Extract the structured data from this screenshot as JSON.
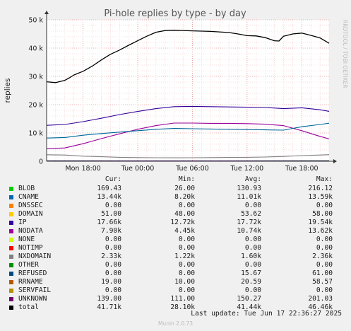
{
  "chart_data": {
    "type": "line",
    "title": "Pi-hole replies by type - by day",
    "ylabel": "replies",
    "side_label": "RRDTOOL / TOBI OETIKER",
    "ylim": [
      0,
      50000
    ],
    "y_ticks": [
      {
        "value": 0,
        "label": "0"
      },
      {
        "value": 10000,
        "label": "10 k"
      },
      {
        "value": 20000,
        "label": "20 k"
      },
      {
        "value": 30000,
        "label": "30 k"
      },
      {
        "value": 40000,
        "label": "40 k"
      },
      {
        "value": 50000,
        "label": "50 k"
      }
    ],
    "x_range_hours": [
      0,
      30
    ],
    "x_ticks": [
      {
        "value": 4,
        "label": "Mon 18:00"
      },
      {
        "value": 10,
        "label": "Tue 00:00"
      },
      {
        "value": 16,
        "label": "Tue 06:00"
      },
      {
        "value": 22,
        "label": "Tue 12:00"
      },
      {
        "value": 28,
        "label": "Tue 18:00"
      }
    ],
    "series": [
      {
        "name": "total",
        "color": "#000000",
        "points": [
          [
            0,
            28100
          ],
          [
            1,
            27800
          ],
          [
            2,
            28600
          ],
          [
            2.5,
            29500
          ],
          [
            3,
            30500
          ],
          [
            4,
            31800
          ],
          [
            5,
            33600
          ],
          [
            6,
            35800
          ],
          [
            7,
            37800
          ],
          [
            8,
            39300
          ],
          [
            9,
            41000
          ],
          [
            10,
            42600
          ],
          [
            11,
            44200
          ],
          [
            12,
            45600
          ],
          [
            13,
            46200
          ],
          [
            14,
            46300
          ],
          [
            16,
            46100
          ],
          [
            18,
            45900
          ],
          [
            20,
            45500
          ],
          [
            21,
            45000
          ],
          [
            22,
            44400
          ],
          [
            23,
            44300
          ],
          [
            24,
            43700
          ],
          [
            25,
            42600
          ],
          [
            25.5,
            42500
          ],
          [
            26,
            44200
          ],
          [
            27,
            45000
          ],
          [
            28,
            45300
          ],
          [
            29,
            44500
          ],
          [
            30,
            43600
          ],
          [
            31,
            41700
          ]
        ]
      },
      {
        "name": "IP",
        "color": "#330099",
        "points": [
          [
            0,
            12700
          ],
          [
            2,
            13000
          ],
          [
            4,
            14000
          ],
          [
            6,
            15200
          ],
          [
            8,
            16500
          ],
          [
            10,
            17600
          ],
          [
            12,
            18600
          ],
          [
            14,
            19300
          ],
          [
            16,
            19400
          ],
          [
            18,
            19300
          ],
          [
            20,
            19200
          ],
          [
            22,
            19100
          ],
          [
            24,
            19000
          ],
          [
            26,
            18600
          ],
          [
            28,
            18900
          ],
          [
            30,
            18200
          ],
          [
            31,
            17660
          ]
        ]
      },
      {
        "name": "CNAME",
        "color": "#006699",
        "points": [
          [
            0,
            8200
          ],
          [
            2,
            8400
          ],
          [
            4,
            9200
          ],
          [
            6,
            9800
          ],
          [
            8,
            10300
          ],
          [
            10,
            10800
          ],
          [
            12,
            11300
          ],
          [
            14,
            11600
          ],
          [
            16,
            11500
          ],
          [
            18,
            11400
          ],
          [
            20,
            11300
          ],
          [
            22,
            11200
          ],
          [
            24,
            11100
          ],
          [
            26,
            11000
          ],
          [
            28,
            12200
          ],
          [
            30,
            13000
          ],
          [
            31,
            13440
          ]
        ]
      },
      {
        "name": "NODATA",
        "color": "#990099",
        "points": [
          [
            0,
            4450
          ],
          [
            2,
            4700
          ],
          [
            4,
            6200
          ],
          [
            6,
            8000
          ],
          [
            8,
            9700
          ],
          [
            10,
            11300
          ],
          [
            12,
            12600
          ],
          [
            14,
            13500
          ],
          [
            16,
            13500
          ],
          [
            18,
            13400
          ],
          [
            20,
            13400
          ],
          [
            22,
            13300
          ],
          [
            24,
            13100
          ],
          [
            26,
            12600
          ],
          [
            28,
            10800
          ],
          [
            30,
            8800
          ],
          [
            31,
            7900
          ]
        ]
      },
      {
        "name": "NXDOMAIN",
        "color": "#808080",
        "points": [
          [
            0,
            2300
          ],
          [
            2,
            2200
          ],
          [
            4,
            1800
          ],
          [
            6,
            1600
          ],
          [
            8,
            1400
          ],
          [
            10,
            1300
          ],
          [
            12,
            1250
          ],
          [
            14,
            1220
          ],
          [
            16,
            1250
          ],
          [
            18,
            1300
          ],
          [
            20,
            1350
          ],
          [
            22,
            1400
          ],
          [
            24,
            1500
          ],
          [
            26,
            1700
          ],
          [
            28,
            2000
          ],
          [
            30,
            2200
          ],
          [
            31,
            2330
          ]
        ]
      },
      {
        "name": "UNKNOWN",
        "color": "#330066",
        "points": [
          [
            0,
            150
          ],
          [
            10,
            140
          ],
          [
            20,
            155
          ],
          [
            31,
            139
          ]
        ]
      },
      {
        "name": "BLOB",
        "color": "#00cc00",
        "points": [
          [
            0,
            140
          ],
          [
            10,
            130
          ],
          [
            20,
            130
          ],
          [
            25,
            150
          ],
          [
            31,
            169
          ]
        ]
      }
    ]
  },
  "legend": {
    "headers": {
      "cur": "Cur:",
      "min": "Min:",
      "avg": "Avg:",
      "max": "Max:"
    },
    "rows": [
      {
        "name": "BLOB",
        "color": "#00cc00",
        "cur": "169.43",
        "min": "26.00",
        "avg": "130.93",
        "max": "216.12"
      },
      {
        "name": "CNAME",
        "color": "#0066b3",
        "cur": "13.44k",
        "min": "8.20k",
        "avg": "11.01k",
        "max": "13.59k"
      },
      {
        "name": "DNSSEC",
        "color": "#ff8000",
        "cur": "0.00",
        "min": "0.00",
        "avg": "0.00",
        "max": "0.00"
      },
      {
        "name": "DOMAIN",
        "color": "#ffcc00",
        "cur": "51.00",
        "min": "48.00",
        "avg": "53.62",
        "max": "58.00"
      },
      {
        "name": "IP",
        "color": "#330099",
        "cur": "17.66k",
        "min": "12.72k",
        "avg": "17.72k",
        "max": "19.54k"
      },
      {
        "name": "NODATA",
        "color": "#990099",
        "cur": "7.90k",
        "min": "4.45k",
        "avg": "10.74k",
        "max": "13.62k"
      },
      {
        "name": "NONE",
        "color": "#ccff00",
        "cur": "0.00",
        "min": "0.00",
        "avg": "0.00",
        "max": "0.00"
      },
      {
        "name": "NOTIMP",
        "color": "#ff0000",
        "cur": "0.00",
        "min": "0.00",
        "avg": "0.00",
        "max": "0.00"
      },
      {
        "name": "NXDOMAIN",
        "color": "#808080",
        "cur": "2.33k",
        "min": "1.22k",
        "avg": "1.60k",
        "max": "2.36k"
      },
      {
        "name": "OTHER",
        "color": "#008f00",
        "cur": "0.00",
        "min": "0.00",
        "avg": "0.00",
        "max": "0.00"
      },
      {
        "name": "REFUSED",
        "color": "#00487d",
        "cur": "0.00",
        "min": "0.00",
        "avg": "15.67",
        "max": "61.00"
      },
      {
        "name": "RRNAME",
        "color": "#b35a00",
        "cur": "19.00",
        "min": "10.00",
        "avg": "20.59",
        "max": "58.57"
      },
      {
        "name": "SERVFAIL",
        "color": "#b38f00",
        "cur": "0.00",
        "min": "0.00",
        "avg": "0.00",
        "max": "0.00"
      },
      {
        "name": "UNKNOWN",
        "color": "#6b006b",
        "cur": "139.00",
        "min": "111.00",
        "avg": "150.27",
        "max": "201.03"
      },
      {
        "name": "total",
        "color": "#000000",
        "cur": "41.71k",
        "min": "28.10k",
        "avg": "41.44k",
        "max": "46.46k"
      }
    ]
  },
  "last_update": "Last update: Tue Jun 17 22:36:27 2025",
  "footer": "Munin 2.0.73"
}
